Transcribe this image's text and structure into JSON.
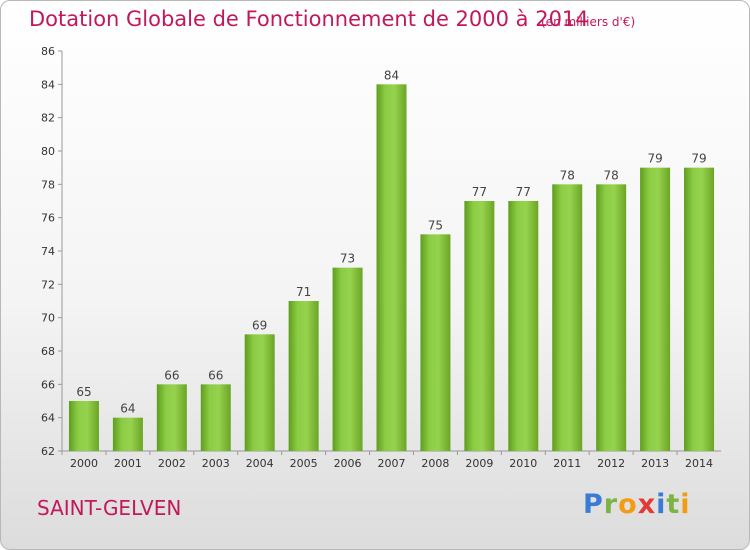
{
  "chart_data": {
    "type": "bar",
    "title": "Dotation Globale de Fonctionnement de 2000 à 2014",
    "subtitle": "(en milliers d'€)",
    "xlabel": "",
    "ylabel": "",
    "categories": [
      "2000",
      "2001",
      "2002",
      "2003",
      "2004",
      "2005",
      "2006",
      "2007",
      "2008",
      "2009",
      "2010",
      "2011",
      "2012",
      "2013",
      "2014"
    ],
    "values": [
      65,
      64,
      66,
      66,
      69,
      71,
      73,
      84,
      75,
      77,
      77,
      78,
      78,
      79,
      79
    ],
    "ylim": [
      62,
      86
    ],
    "yticks": [
      62,
      64,
      66,
      68,
      70,
      72,
      74,
      76,
      78,
      80,
      82,
      84,
      86
    ],
    "grid": false,
    "bar_color": "#7cc03a"
  },
  "commune": "SAINT-GELVEN",
  "logo": {
    "text": "Proxiti",
    "letters": [
      "P",
      "r",
      "o",
      "x",
      "i",
      "t",
      "i"
    ]
  }
}
